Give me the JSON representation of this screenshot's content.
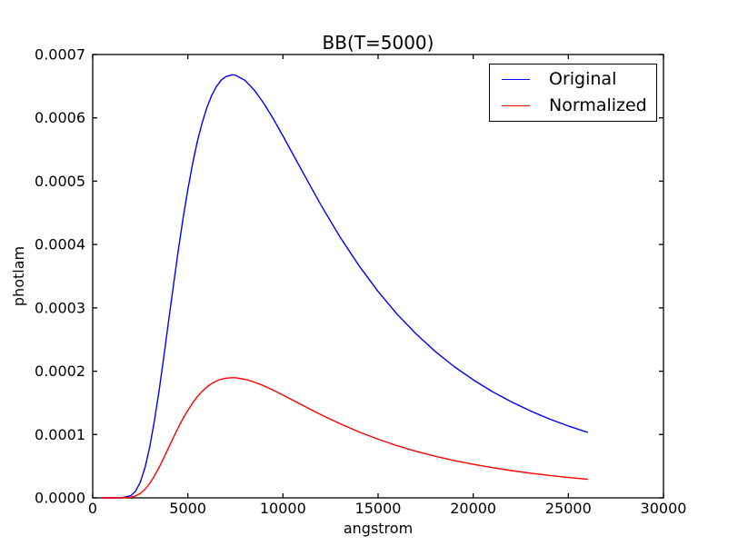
{
  "colors": {
    "background": "#ffffff",
    "frame": "#000000",
    "text": "#000000",
    "original_line": "#0000ff",
    "normalized_line": "#ff0000"
  },
  "chart_data": {
    "type": "line",
    "title": "BB(T=5000)",
    "xlabel": "angstrom",
    "ylabel": "photlam",
    "xlim": [
      0,
      30000
    ],
    "ylim": [
      0,
      0.0007
    ],
    "grid": false,
    "legend_position": "upper right",
    "x_ticks": [
      0,
      5000,
      10000,
      15000,
      20000,
      25000,
      30000
    ],
    "x_tick_labels": [
      "0",
      "5000",
      "10000",
      "15000",
      "20000",
      "25000",
      "30000"
    ],
    "y_ticks": [
      0,
      0.0001,
      0.0002,
      0.0003,
      0.0004,
      0.0005,
      0.0006,
      0.0007
    ],
    "y_tick_labels": [
      "0.0000",
      "0.0001",
      "0.0002",
      "0.0003",
      "0.0004",
      "0.0005",
      "0.0006",
      "0.0007"
    ],
    "series": [
      {
        "name": "Original",
        "color": "#0000ff",
        "x": [
          500,
          1000,
          1500,
          2000,
          2250,
          2500,
          2750,
          3000,
          3250,
          3500,
          3750,
          4000,
          4250,
          4500,
          4750,
          5000,
          5250,
          5500,
          5750,
          6000,
          6250,
          6500,
          6750,
          7000,
          7340,
          7500,
          8000,
          8500,
          9000,
          9500,
          10000,
          11000,
          12000,
          13000,
          14000,
          15000,
          16000,
          17000,
          18000,
          19000,
          20000,
          21000,
          22000,
          23000,
          24000,
          25000,
          26000
        ],
        "y": [
          0,
          0,
          1e-07,
          3.4e-06,
          1.04e-05,
          2.46e-05,
          4.79e-05,
          8.08e-05,
          0.0001227,
          0.0001717,
          0.0002254,
          0.0002814,
          0.0003373,
          0.0003911,
          0.0004413,
          0.000487,
          0.0005276,
          0.0005626,
          0.000592,
          0.0006161,
          0.0006351,
          0.0006494,
          0.0006594,
          0.0006652,
          0.000668,
          0.0006675,
          0.0006593,
          0.0006436,
          0.0006225,
          0.000598,
          0.0005715,
          0.0005162,
          0.0004622,
          0.0004118,
          0.0003663,
          0.0003259,
          0.0002901,
          0.0002588,
          0.0002313,
          0.0002073,
          0.0001863,
          0.0001678,
          0.0001516,
          0.0001373,
          0.0001247,
          0.0001135,
          0.0001036
        ]
      },
      {
        "name": "Normalized",
        "color": "#ff0000",
        "x": [
          500,
          1000,
          1500,
          2000,
          2250,
          2500,
          2750,
          3000,
          3250,
          3500,
          3750,
          4000,
          4250,
          4500,
          4750,
          5000,
          5250,
          5500,
          5750,
          6000,
          6250,
          6500,
          6750,
          7000,
          7340,
          7500,
          8000,
          8500,
          9000,
          9500,
          10000,
          11000,
          12000,
          13000,
          14000,
          15000,
          16000,
          17000,
          18000,
          19000,
          20000,
          21000,
          22000,
          23000,
          24000,
          25000,
          26000
        ],
        "y": [
          0,
          0,
          0,
          1e-06,
          3e-06,
          7e-06,
          1.36e-05,
          2.29e-05,
          3.48e-05,
          4.88e-05,
          6.4e-05,
          7.99e-05,
          9.58e-05,
          0.0001111,
          0.0001253,
          0.0001383,
          0.0001498,
          0.0001598,
          0.0001681,
          0.000175,
          0.0001804,
          0.0001844,
          0.0001873,
          0.0001889,
          0.0001897,
          0.0001896,
          0.0001872,
          0.0001828,
          0.0001768,
          0.0001698,
          0.0001623,
          0.0001466,
          0.0001313,
          0.000117,
          0.000104,
          9.26e-05,
          8.24e-05,
          7.35e-05,
          6.57e-05,
          5.89e-05,
          5.29e-05,
          4.77e-05,
          4.31e-05,
          3.9e-05,
          3.54e-05,
          3.22e-05,
          2.94e-05
        ]
      }
    ]
  }
}
